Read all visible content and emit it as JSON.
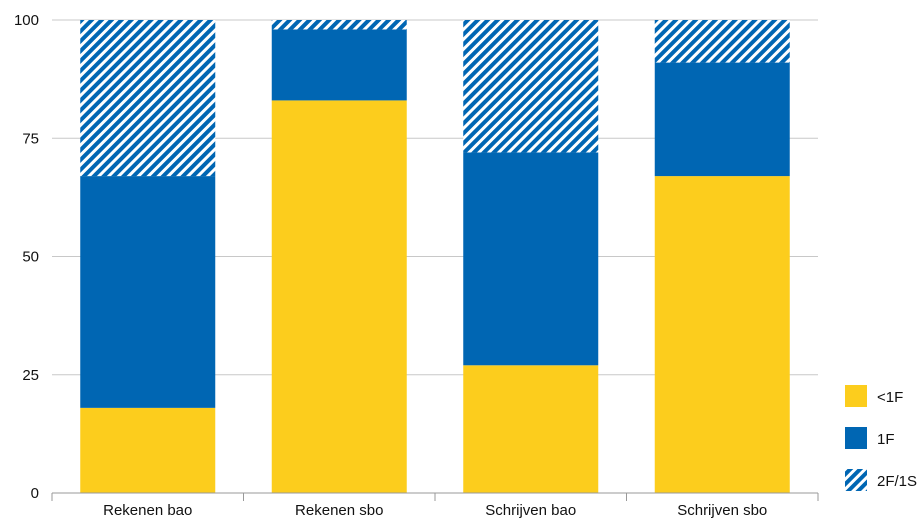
{
  "chart_data": {
    "type": "bar",
    "stacked": true,
    "categories": [
      "Rekenen bao",
      "Rekenen sbo",
      "Schrijven bao",
      "Schrijven sbo"
    ],
    "series": [
      {
        "name": "<1F",
        "values": [
          18,
          83,
          27,
          67
        ],
        "color": "#FCCD1D",
        "pattern": "solid"
      },
      {
        "name": "1F",
        "values": [
          49,
          15,
          45,
          24
        ],
        "color": "#0066B3",
        "pattern": "solid"
      },
      {
        "name": "2F/1S",
        "values": [
          33,
          2,
          28,
          9
        ],
        "color": "#0066B3",
        "pattern": "diagonal-hatch"
      }
    ],
    "yticks": [
      "0",
      "25",
      "50",
      "75",
      "100"
    ],
    "ylim": [
      0,
      100
    ],
    "grid": true,
    "legend_position": "bottom-right",
    "legend": [
      {
        "label": "<1F",
        "color": "#FCCD1D",
        "pattern": "solid"
      },
      {
        "label": "1F",
        "color": "#0066B3",
        "pattern": "solid"
      },
      {
        "label": "2F/1S",
        "color": "#0066B3",
        "pattern": "diagonal-hatch"
      }
    ]
  }
}
